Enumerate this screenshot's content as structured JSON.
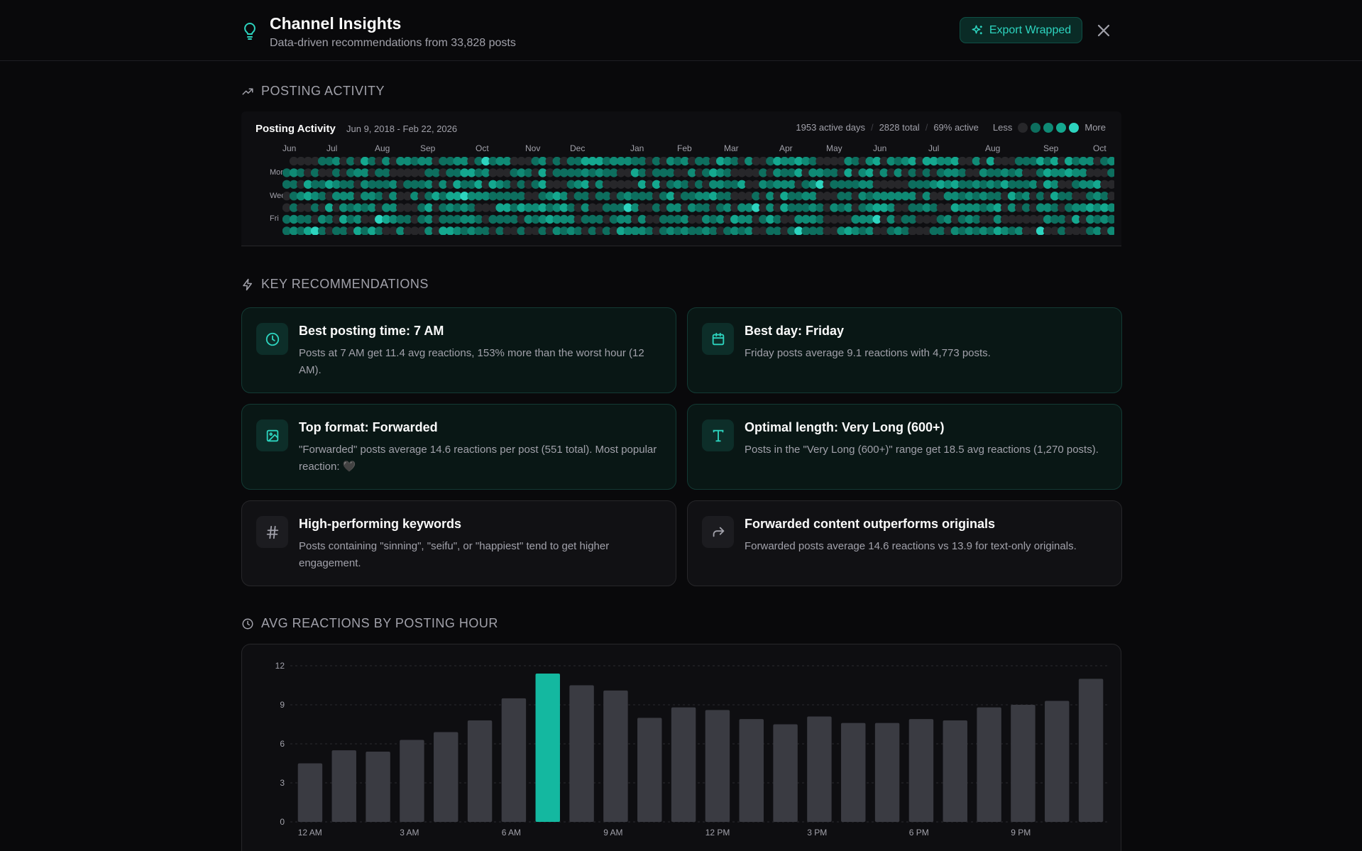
{
  "header": {
    "title": "Channel Insights",
    "subtitle": "Data-driven recommendations from 33,828 posts",
    "export_label": "Export Wrapped"
  },
  "sections": {
    "activity": "POSTING ACTIVITY",
    "recommendations": "KEY RECOMMENDATIONS",
    "hours": "AVG REACTIONS BY POSTING HOUR"
  },
  "activity": {
    "title": "Posting Activity",
    "range": "Jun 9, 2018 - Feb 22, 2026",
    "active_days": "1953 active days",
    "total": "2828 total",
    "active_pct": "69% active",
    "less": "Less",
    "more": "More",
    "months": [
      "Jun",
      "Jul",
      "Aug",
      "Sep",
      "Oct",
      "Nov",
      "Dec",
      "Jan",
      "Feb",
      "Mar",
      "Apr",
      "May",
      "Jun",
      "Jul",
      "Aug",
      "Sep",
      "Oct"
    ],
    "day_labels": [
      "Mon",
      "Wed",
      "Fri"
    ],
    "colors": {
      "empty": "#27272a",
      "l1": "#0d6e5e",
      "l2": "#0f8a75",
      "l3": "#14a88f",
      "l4": "#2dd4bf"
    }
  },
  "recommendations": [
    {
      "icon": "clock-icon",
      "title": "Best posting time: 7 AM",
      "text": "Posts at 7 AM get 11.4 avg reactions, 153% more than the worst hour (12 AM).",
      "style": "accent"
    },
    {
      "icon": "calendar-icon",
      "title": "Best day: Friday",
      "text": "Friday posts average 9.1 reactions with 4,773 posts.",
      "style": "accent"
    },
    {
      "icon": "image-icon",
      "title": "Top format: Forwarded",
      "text": "\"Forwarded\" posts average 14.6 reactions per post (551 total). Most popular reaction: 🖤",
      "style": "accent"
    },
    {
      "icon": "text-type-icon",
      "title": "Optimal length: Very Long (600+)",
      "text": "Posts in the \"Very Long (600+)\" range get 18.5 avg reactions (1,270 posts).",
      "style": "accent"
    },
    {
      "icon": "hash-icon",
      "title": "High-performing keywords",
      "text": "Posts containing \"sinning\", \"seifu\", or \"happiest\" tend to get higher engagement.",
      "style": "neutral"
    },
    {
      "icon": "forward-arrow-icon",
      "title": "Forwarded content outperforms originals",
      "text": "Forwarded posts average 14.6 reactions vs 13.9 for text-only originals.",
      "style": "neutral"
    }
  ],
  "chart_data": {
    "type": "bar",
    "title": "AVG REACTIONS BY POSTING HOUR",
    "categories": [
      "12 AM",
      "1 AM",
      "2 AM",
      "3 AM",
      "4 AM",
      "5 AM",
      "6 AM",
      "7 AM",
      "8 AM",
      "9 AM",
      "10 AM",
      "11 AM",
      "12 PM",
      "1 PM",
      "2 PM",
      "3 PM",
      "4 PM",
      "5 PM",
      "6 PM",
      "7 PM",
      "8 PM",
      "9 PM",
      "10 PM",
      "11 PM"
    ],
    "tick_labels": [
      "12 AM",
      "3 AM",
      "6 AM",
      "9 AM",
      "12 PM",
      "3 PM",
      "6 PM",
      "9 PM"
    ],
    "values": [
      4.5,
      5.5,
      5.4,
      6.3,
      6.9,
      7.8,
      9.5,
      11.4,
      10.5,
      10.1,
      8.0,
      8.8,
      8.6,
      7.9,
      7.5,
      8.1,
      7.6,
      7.6,
      7.9,
      7.8,
      8.8,
      9.0,
      9.3,
      11.0
    ],
    "highlight": "7 AM",
    "yticks": [
      0,
      3,
      6,
      9,
      12
    ],
    "ylim": [
      0,
      12
    ],
    "colors": {
      "bar": "#3a3b42",
      "highlight": "#14b8a0"
    }
  }
}
